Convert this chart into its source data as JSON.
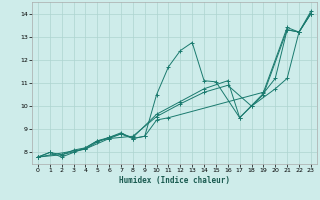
{
  "xlabel": "Humidex (Indice chaleur)",
  "bg_color": "#ceecea",
  "grid_color": "#aed4d0",
  "line_color": "#1a7a6e",
  "xlim": [
    -0.5,
    23.5
  ],
  "ylim": [
    7.5,
    14.5
  ],
  "xticks": [
    0,
    1,
    2,
    3,
    4,
    5,
    6,
    7,
    8,
    9,
    10,
    11,
    12,
    13,
    14,
    15,
    16,
    17,
    18,
    19,
    20,
    21,
    22,
    23
  ],
  "yticks": [
    8,
    9,
    10,
    11,
    12,
    13,
    14
  ],
  "series1_x": [
    0,
    1,
    2,
    3,
    4,
    5,
    6,
    7,
    8,
    9,
    10,
    11,
    12,
    13,
    14,
    15,
    17,
    19,
    20,
    21,
    22,
    23
  ],
  "series1_y": [
    7.8,
    8.0,
    7.9,
    8.1,
    8.2,
    8.5,
    8.65,
    8.85,
    8.6,
    8.7,
    10.5,
    11.7,
    12.4,
    12.75,
    11.1,
    11.05,
    9.5,
    10.55,
    11.2,
    13.3,
    13.2,
    14.0
  ],
  "series2_x": [
    0,
    1,
    2,
    3,
    4,
    5,
    6,
    7,
    8,
    9,
    10,
    11,
    19,
    21,
    22,
    23
  ],
  "series2_y": [
    7.8,
    8.0,
    7.8,
    8.0,
    8.2,
    8.5,
    8.6,
    8.8,
    8.6,
    8.7,
    9.4,
    9.5,
    10.6,
    13.4,
    13.2,
    14.1
  ],
  "series3_x": [
    0,
    2,
    4,
    5,
    6,
    7,
    8,
    10,
    12,
    14,
    16,
    17,
    18,
    19,
    21,
    22,
    23
  ],
  "series3_y": [
    7.8,
    7.9,
    8.15,
    8.45,
    8.65,
    8.8,
    8.65,
    9.65,
    10.2,
    10.75,
    11.1,
    9.5,
    10.0,
    10.5,
    13.3,
    13.2,
    14.0
  ],
  "series4_x": [
    0,
    4,
    6,
    8,
    10,
    12,
    14,
    16,
    18,
    20,
    21,
    22,
    23
  ],
  "series4_y": [
    7.8,
    8.15,
    8.6,
    8.7,
    9.55,
    10.1,
    10.6,
    10.9,
    10.0,
    10.75,
    11.2,
    13.2,
    14.0
  ]
}
